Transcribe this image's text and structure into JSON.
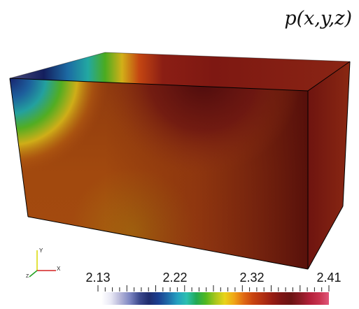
{
  "title": "p(x,y,z)",
  "axes": {
    "x_label": "X",
    "y_label": "Y",
    "z_label": "Z"
  },
  "colorbar": {
    "min": 2.13,
    "max": 2.41,
    "tick_labels": [
      "2.13",
      "2.22",
      "2.32",
      "2.41"
    ],
    "colormap": [
      "#ffffff",
      "#e8e8f5",
      "#b5b5d8",
      "#7d86c2",
      "#3d4a8e",
      "#1f2c6e",
      "#1b3f90",
      "#1f6aa8",
      "#25a0c0",
      "#2cc0b0",
      "#21aa55",
      "#50b820",
      "#a7c61c",
      "#e9d419",
      "#f0a515",
      "#e06a14",
      "#c8430f",
      "#b23012",
      "#971d13",
      "#7d1514",
      "#6b1413",
      "#8b1b24",
      "#b3203a",
      "#c8334f",
      "#e0567a"
    ]
  },
  "colors": {
    "front_face_warm": "#a2480f",
    "front_face_dark": "#5a0c0c",
    "top_face_dark": "#7e1812",
    "side_face": "#7c1a0e",
    "edge": "#000000"
  }
}
